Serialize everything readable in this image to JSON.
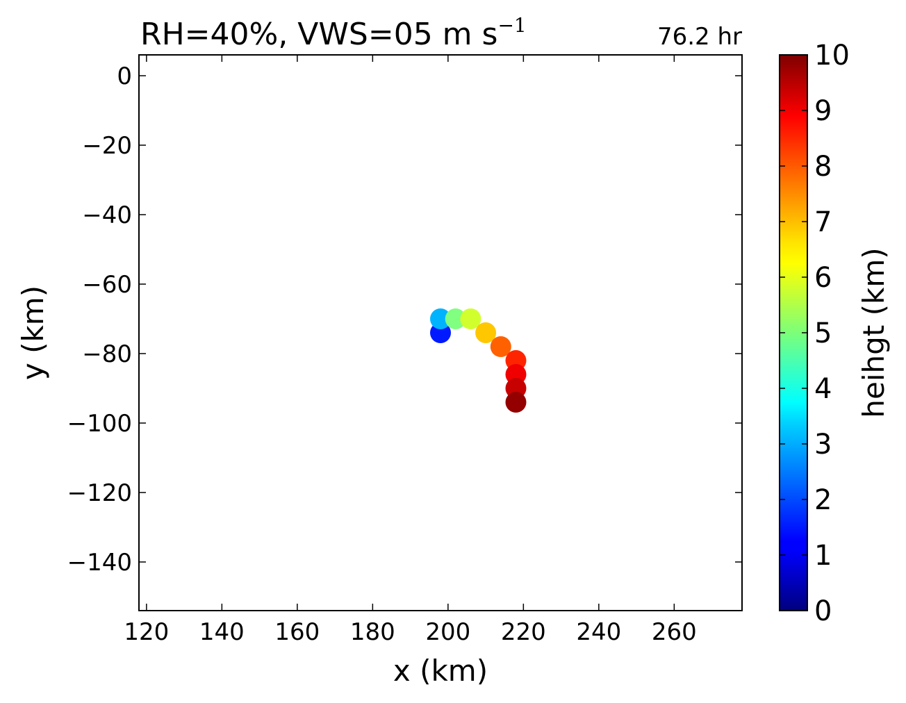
{
  "chart_data": {
    "type": "scatter",
    "title": "RH=40%, VWS=05 m s",
    "title_superscript": "−1",
    "annotation": "76.2 hr",
    "annotation_color": "#0000ff",
    "xlabel": "x (km)",
    "ylabel": "y (km)",
    "xlim": [
      118,
      278
    ],
    "ylim": [
      -154,
      6
    ],
    "xticks": [
      120,
      140,
      160,
      180,
      200,
      220,
      240,
      260
    ],
    "yticks": [
      0,
      -20,
      -40,
      -60,
      -80,
      -100,
      -120,
      -140
    ],
    "grid": false,
    "colorbar": {
      "label": "heihgt (km)",
      "colormap": "jet",
      "range": [
        0,
        10
      ],
      "ticks": [
        0,
        1,
        2,
        3,
        4,
        5,
        6,
        7,
        8,
        9,
        10
      ]
    },
    "points": [
      {
        "x": 198,
        "y": -74,
        "height": 1.5
      },
      {
        "x": 198,
        "y": -70,
        "height": 3.0
      },
      {
        "x": 202,
        "y": -70,
        "height": 5.0
      },
      {
        "x": 206,
        "y": -70,
        "height": 5.8
      },
      {
        "x": 210,
        "y": -74,
        "height": 6.8
      },
      {
        "x": 214,
        "y": -78,
        "height": 7.8
      },
      {
        "x": 218,
        "y": -82,
        "height": 8.4
      },
      {
        "x": 218,
        "y": -86,
        "height": 8.9
      },
      {
        "x": 218,
        "y": -90,
        "height": 9.3
      },
      {
        "x": 218,
        "y": -94,
        "height": 9.8
      }
    ]
  }
}
